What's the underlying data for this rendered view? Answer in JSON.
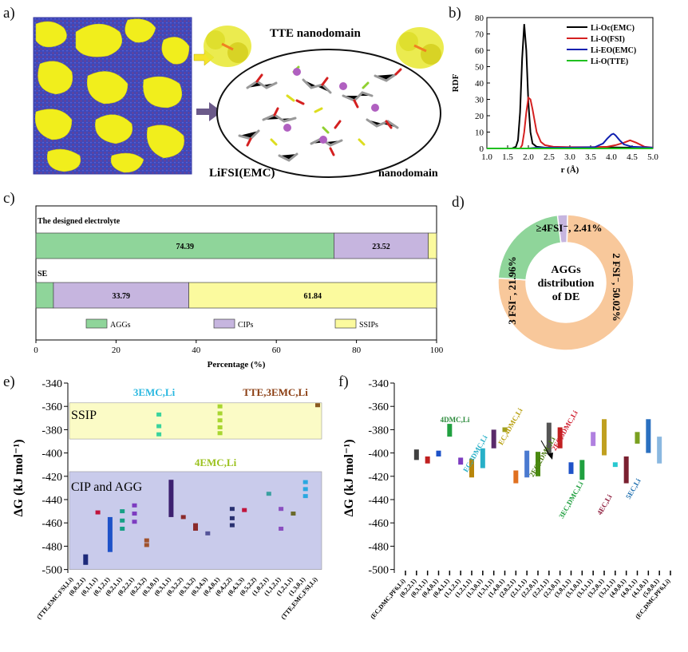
{
  "panel_labels": {
    "a": "a)",
    "b": "b)",
    "c": "c)",
    "d": "d)",
    "e": "e)",
    "f": "f)"
  },
  "panel_a": {
    "label_tte": "TTE nanodomain",
    "label_lifsi": "LiFSI(EMC)",
    "label_nano": "nanodomain",
    "colors": {
      "blob": "#f1ee1c",
      "bg": "#4a52c8"
    }
  },
  "chart_data": [
    {
      "id": "b",
      "type": "line",
      "title": "",
      "xlabel": "r (Å)",
      "ylabel": "RDF",
      "xlim": [
        1.0,
        5.0
      ],
      "ylim": [
        0,
        80
      ],
      "xticks": [
        "1.0",
        "1.5",
        "2.0",
        "2.5",
        "3.0",
        "3.5",
        "4.0",
        "4.5",
        "5.0"
      ],
      "yticks": [
        "0",
        "10",
        "20",
        "30",
        "40",
        "50",
        "60",
        "70",
        "80"
      ],
      "series": [
        {
          "name": "Li-Oc(EMC)",
          "color": "#000000",
          "x": [
            1.0,
            1.6,
            1.7,
            1.75,
            1.8,
            1.85,
            1.9,
            1.95,
            2.0,
            2.05,
            2.1,
            2.2,
            2.4,
            2.7,
            3.0,
            3.5,
            4.0,
            4.5,
            5.0
          ],
          "y": [
            0,
            0,
            1,
            5,
            22,
            55,
            76,
            60,
            28,
            10,
            3,
            1,
            0.5,
            0.5,
            0.5,
            0.5,
            0.6,
            0.5,
            0.5
          ]
        },
        {
          "name": "Li-O(FSI)",
          "color": "#d42020",
          "x": [
            1.0,
            1.8,
            1.85,
            1.9,
            1.95,
            2.0,
            2.05,
            2.1,
            2.2,
            2.3,
            2.4,
            2.6,
            3.0,
            3.5,
            3.9,
            4.1,
            4.3,
            4.45,
            4.6,
            4.8,
            5.0
          ],
          "y": [
            0,
            0,
            2,
            10,
            22,
            31,
            30,
            24,
            10,
            4,
            2,
            1,
            0.8,
            0.8,
            1,
            2,
            3.5,
            5,
            3.5,
            1,
            0.5
          ]
        },
        {
          "name": "Li-EO(EMC)",
          "color": "#1020b0",
          "x": [
            1.0,
            2.0,
            2.2,
            3.0,
            3.6,
            3.8,
            3.9,
            4.0,
            4.05,
            4.1,
            4.2,
            4.3,
            4.5,
            5.0
          ],
          "y": [
            0,
            0,
            0.5,
            0.5,
            0.8,
            3,
            6,
            8.5,
            9,
            8,
            5,
            2.5,
            1,
            0.5
          ]
        },
        {
          "name": "Li-O(TTE)",
          "color": "#20c020",
          "x": [
            1.0,
            5.0
          ],
          "y": [
            0,
            0
          ]
        }
      ]
    },
    {
      "id": "c",
      "type": "bar",
      "orientation": "horizontal-stacked",
      "xlabel": "Percentage (%)",
      "xlim": [
        0,
        100
      ],
      "xticks": [
        "0",
        "20",
        "40",
        "60",
        "80",
        "100"
      ],
      "categories": [
        "The designed electrolyte",
        "SE"
      ],
      "series": [
        {
          "name": "AGGs",
          "color": "#8fd59a",
          "values": [
            74.39,
            4.37
          ]
        },
        {
          "name": "CIPs",
          "color": "#c6b5df",
          "values": [
            23.52,
            33.79
          ]
        },
        {
          "name": "SSIPs",
          "color": "#fbfa9e",
          "values": [
            2.09,
            61.84
          ]
        }
      ],
      "data_labels": [
        [
          "74.39",
          "23.52",
          ""
        ],
        [
          "",
          "33.79",
          "61.84"
        ]
      ]
    },
    {
      "id": "d",
      "type": "pie",
      "center_text": [
        "AGGs",
        "distribution",
        "of DE"
      ],
      "slices": [
        {
          "label": "2 FSI⁻, 50.02%",
          "value": 50.02,
          "color": "#f8c89b"
        },
        {
          "label": "3 FSI⁻, 21.96%",
          "value": 21.96,
          "color": "#8fd59a"
        },
        {
          "label": "≥4FSI⁻, 2.41%",
          "value": 2.41,
          "color": "#c6b5df"
        },
        {
          "label": "",
          "value": 25.61,
          "color": "#f8c89b"
        }
      ]
    },
    {
      "id": "e",
      "type": "scatter",
      "ylabel": "ΔG (kJ mol⁻¹)",
      "ylim": [
        -505,
        -340
      ],
      "yticks": [
        "-340",
        "-360",
        "-380",
        "-400",
        "-420",
        "-440",
        "-460",
        "-480",
        "-500"
      ],
      "regions": [
        {
          "name": "SSIP",
          "from": -357,
          "to": -388,
          "color": "#fbfbc6"
        },
        {
          "name": "CIP and AGG",
          "from": -416,
          "to": -500,
          "color": "#c9cbeb"
        }
      ],
      "annotations": [
        {
          "text": "3EMC,Li",
          "color": "#2ab8e0"
        },
        {
          "text": "TTE,3EMC,Li",
          "color": "#8a3c10"
        },
        {
          "text": "4EMC,Li",
          "color": "#9bc21e"
        }
      ],
      "categories": [
        "(TTE,EMC,FSI,Li)",
        "(0,0,2,1)",
        "(0,1,1,1)",
        "(0,1,2,1)",
        "(0,2,1,1)",
        "(0,2,2,1)",
        "(0,2,3,2)",
        "(0,3,0,1)",
        "(0,3,1,1)",
        "(0,3,2,2)",
        "(0,3,3,2)",
        "(0,3,4,3)",
        "(0,4,0,1)",
        "(0,4,2,2)",
        "(0,4,3,3)",
        "(0,5,2,2)",
        "(1,0,2,1)",
        "(1,1,2,1)",
        "(1,2,1,1)",
        "(1,3,0,1)",
        "(TTE,EMC,FSI,Li)"
      ],
      "points": [
        {
          "cat": 1,
          "values": [
            -487,
            -490,
            -493,
            -496
          ],
          "color": "#1d2a7a"
        },
        {
          "cat": 2,
          "values": [
            -451
          ],
          "color": "#c0143c"
        },
        {
          "cat": 3,
          "values": [
            -455,
            -470,
            -478,
            -485
          ],
          "color": "#1e52c8"
        },
        {
          "cat": 4,
          "values": [
            -450,
            -458,
            -465
          ],
          "color": "#16a085"
        },
        {
          "cat": 5,
          "values": [
            -445,
            -452,
            -459
          ],
          "color": "#7d3cc0"
        },
        {
          "cat": 6,
          "values": [
            -475,
            -479
          ],
          "color": "#a0522d"
        },
        {
          "cat": 7,
          "values": [
            -367,
            -377,
            -384
          ],
          "color": "#39d39d"
        },
        {
          "cat": 8,
          "values": [
            -423,
            -435,
            -445,
            -455
          ],
          "color": "#3c2070"
        },
        {
          "cat": 9,
          "values": [
            -455
          ],
          "color": "#8b2a2a"
        },
        {
          "cat": 10,
          "values": [
            -462,
            -465
          ],
          "color": "#8b2a2a"
        },
        {
          "cat": 11,
          "values": [
            -469
          ],
          "color": "#555599"
        },
        {
          "cat": 12,
          "values": [
            -360,
            -366,
            -372,
            -378,
            -383
          ],
          "color": "#a8d630"
        },
        {
          "cat": 13,
          "values": [
            -448,
            -456,
            -462
          ],
          "color": "#283070"
        },
        {
          "cat": 14,
          "values": [
            -449
          ],
          "color": "#c0143c"
        },
        {
          "cat": 16,
          "values": [
            -435
          ],
          "color": "#3aa0a0"
        },
        {
          "cat": 17,
          "values": [
            -448,
            -465
          ],
          "color": "#8b4fc0"
        },
        {
          "cat": 18,
          "values": [
            -452
          ],
          "color": "#6a6a2a"
        },
        {
          "cat": 19,
          "values": [
            -425,
            -431,
            -437
          ],
          "color": "#2aa8e0"
        },
        {
          "cat": 20,
          "values": [
            -359
          ],
          "color": "#8a5a20"
        }
      ]
    },
    {
      "id": "f",
      "type": "scatter",
      "ylabel": "ΔG (kJ mol⁻¹)",
      "ylim": [
        -505,
        -340
      ],
      "yticks": [
        "-340",
        "-360",
        "-380",
        "-400",
        "-420",
        "-440",
        "-460",
        "-480",
        "-500"
      ],
      "annotations": [
        {
          "text": "4DMC,Li",
          "color": "#2a8a3a"
        },
        {
          "text": "EC,3DMC,Li",
          "color": "#28b0c8"
        },
        {
          "text": "2EC,2DMC,Li",
          "color": "#4a7a10"
        },
        {
          "text": "EC,4DMC,Li",
          "color": "#b8a010"
        },
        {
          "text": "2EC,3DMC,Li",
          "color": "#d02030"
        },
        {
          "text": "3EC,DMC,Li",
          "color": "#20a040"
        },
        {
          "text": "4EC,Li",
          "color": "#902040"
        },
        {
          "text": "5EC,Li",
          "color": "#2070b0"
        }
      ],
      "categories": [
        "(EC,DMC,PF6,Li)",
        "(0,2,2,1)",
        "(0,3,1,1)",
        "(0,4,0,1)",
        "(0,4,1,1)",
        "(1,1,2,1)",
        "(1,2,1,1)",
        "(1,3,0,1)",
        "(1,3,1,1)",
        "(1,4,0,1)",
        "(2,0,2,1)",
        "(2,1,1,1)",
        "(2,2,0,1)",
        "(2,2,1,1)",
        "(2,3,0,1)",
        "(3,0,1,1)",
        "(3,1,0,1)",
        "(3,1,1,1)",
        "(3,2,0,1)",
        "(3,2,1,1)",
        "(4,0,0,1)",
        "(4,0,1,1)",
        "(4,1,0,1)",
        "(5,0,0,1)",
        "(EC,DMC,PF6,Li)"
      ],
      "points": [
        {
          "cat": 1,
          "from": -397,
          "to": -406,
          "color": "#404040"
        },
        {
          "cat": 2,
          "from": -403,
          "to": -409,
          "color": "#c02020"
        },
        {
          "cat": 3,
          "from": -398,
          "to": -403,
          "color": "#1e52c8"
        },
        {
          "cat": 4,
          "from": -375,
          "to": -386,
          "color": "#20a040"
        },
        {
          "cat": 5,
          "from": -404,
          "to": -410,
          "color": "#7d3cc0"
        },
        {
          "cat": 6,
          "from": -405,
          "to": -421,
          "color": "#b8860b"
        },
        {
          "cat": 7,
          "from": -396,
          "to": -413,
          "color": "#28b0c8"
        },
        {
          "cat": 8,
          "from": -380,
          "to": -396,
          "color": "#5a2a6a"
        },
        {
          "cat": 9,
          "from": -378,
          "to": -382,
          "color": "#a0a020"
        },
        {
          "cat": 10,
          "from": -415,
          "to": -426,
          "color": "#e07020"
        },
        {
          "cat": 11,
          "from": -398,
          "to": -421,
          "color": "#4a7ad0"
        },
        {
          "cat": 12,
          "from": -399,
          "to": -420,
          "color": "#4a8a10"
        },
        {
          "cat": 13,
          "from": -374,
          "to": -401,
          "color": "#555555"
        },
        {
          "cat": 14,
          "from": -378,
          "to": -396,
          "color": "#c02020"
        },
        {
          "cat": 15,
          "from": -408,
          "to": -418,
          "color": "#1e52c8"
        },
        {
          "cat": 16,
          "from": -406,
          "to": -423,
          "color": "#20a040"
        },
        {
          "cat": 17,
          "from": -382,
          "to": -394,
          "color": "#b080e0"
        },
        {
          "cat": 18,
          "from": -371,
          "to": -402,
          "color": "#c0a020"
        },
        {
          "cat": 19,
          "from": -408,
          "to": -412,
          "color": "#28c8d0"
        },
        {
          "cat": 20,
          "from": -403,
          "to": -426,
          "color": "#7a2030"
        },
        {
          "cat": 21,
          "from": -382,
          "to": -392,
          "color": "#7aa020"
        },
        {
          "cat": 22,
          "from": -371,
          "to": -400,
          "color": "#2a70c0"
        },
        {
          "cat": 23,
          "from": -386,
          "to": -409,
          "color": "#8ab8e0"
        }
      ]
    }
  ]
}
